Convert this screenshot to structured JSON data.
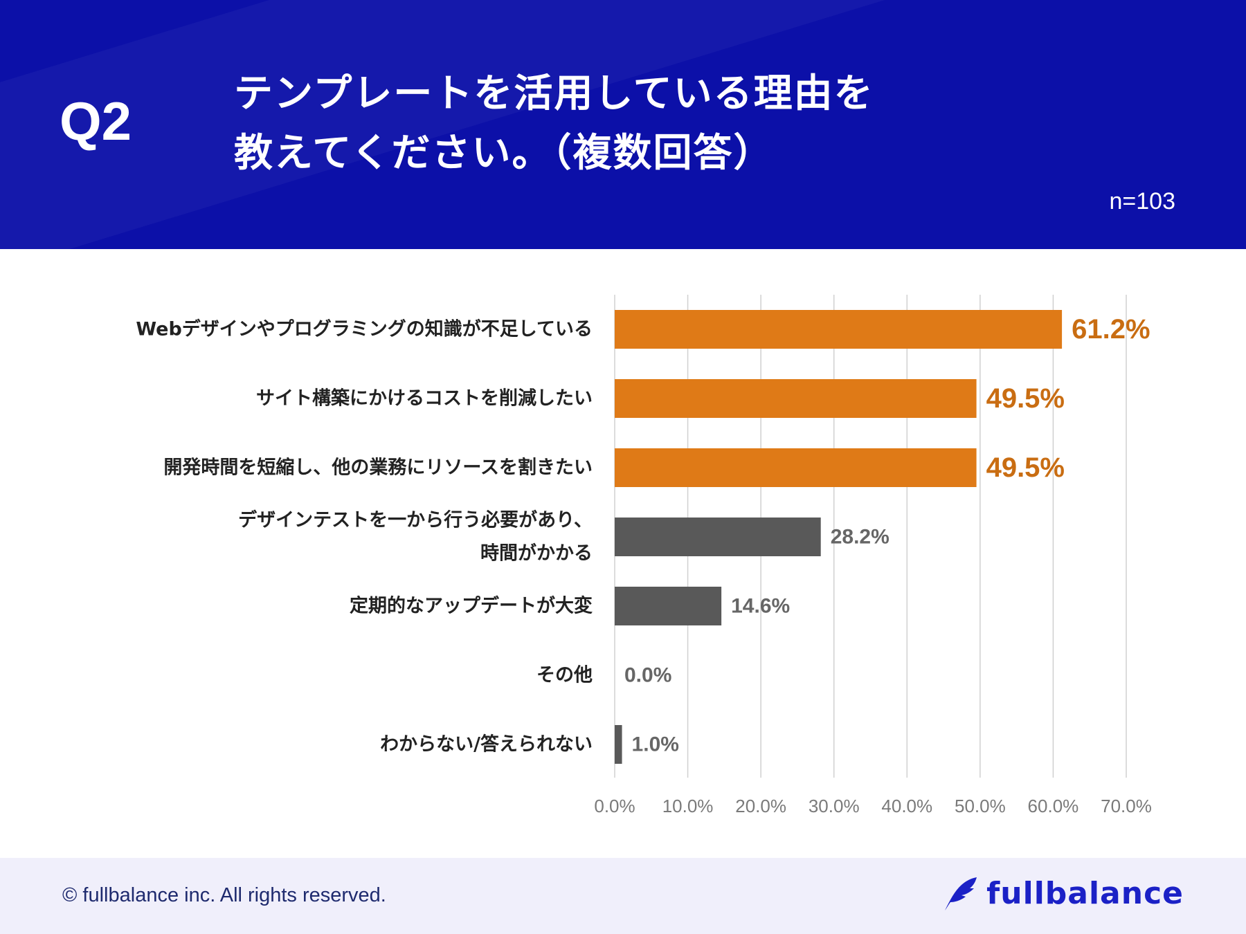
{
  "header": {
    "question_label": "Q2",
    "title_line1": "テンプレートを活用している理由を",
    "title_line2": "教えてください。（複数回答）",
    "sample_size": "n=103"
  },
  "colors": {
    "header_bg": "#0c10a8",
    "highlight_bar": "#df7a17",
    "normal_bar": "#595959",
    "highlight_label": "#c96d12",
    "normal_label": "#666666",
    "grid": "#d0d0d0",
    "category_text": "#222222",
    "brand": "#1b21c6"
  },
  "chart_data": {
    "type": "bar",
    "orientation": "horizontal",
    "title": "テンプレートを活用している理由を教えてください。（複数回答）",
    "categories": [
      [
        "Webデザインやプログラミングの知識が不足している"
      ],
      [
        "サイト構築にかけるコストを削減したい"
      ],
      [
        "開発時間を短縮し、他の業務にリソースを割きたい"
      ],
      [
        "デザインテストを一から行う必要があり、",
        "時間がかかる"
      ],
      [
        "定期的なアップデートが大変"
      ],
      [
        "その他"
      ],
      [
        "わからない/答えられない"
      ]
    ],
    "values": [
      61.2,
      49.5,
      49.5,
      28.2,
      14.6,
      0.0,
      1.0
    ],
    "value_labels": [
      "61.2%",
      "49.5%",
      "49.5%",
      "28.2%",
      "14.6%",
      "0.0%",
      "1.0%"
    ],
    "highlighted": [
      true,
      true,
      true,
      false,
      false,
      false,
      false
    ],
    "xlim": [
      0,
      70
    ],
    "xticks": [
      0,
      10,
      20,
      30,
      40,
      50,
      60,
      70
    ],
    "xtick_labels": [
      "0.0%",
      "10.0%",
      "20.0%",
      "30.0%",
      "40.0%",
      "50.0%",
      "60.0%",
      "70.0%"
    ],
    "xlabel": "",
    "ylabel": "",
    "grid": true
  },
  "footer": {
    "copyright": "© fullbalance inc. All rights reserved.",
    "brand_name": "fullbalance",
    "brand_icon": "feather-icon"
  }
}
